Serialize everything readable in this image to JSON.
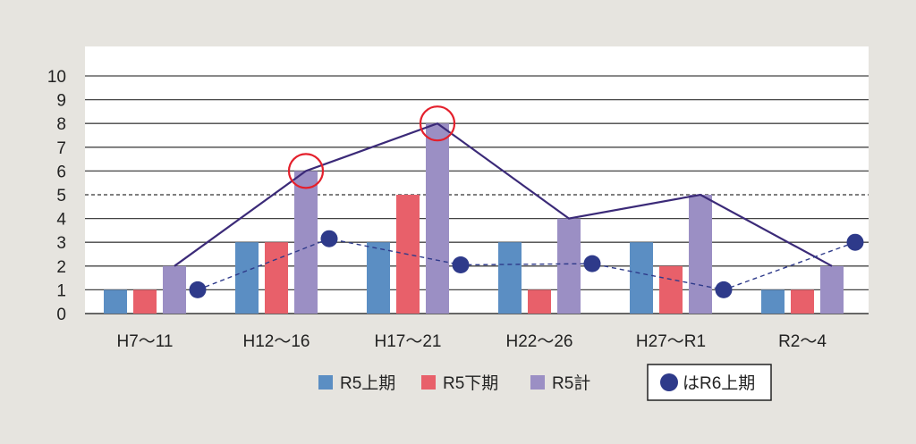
{
  "chart_data": {
    "type": "bar",
    "categories": [
      "H7～11",
      "H12～16",
      "H17～21",
      "H22～26",
      "H27～R1",
      "R2～4"
    ],
    "ylim": [
      0,
      10
    ],
    "yticks": [
      0,
      1,
      2,
      3,
      4,
      5,
      6,
      7,
      8,
      9,
      10
    ],
    "grid": true,
    "reference_line": 5,
    "series": [
      {
        "name": "R5上期",
        "kind": "bar",
        "color": "#5b8ec3",
        "values": [
          1,
          3,
          3,
          3,
          3,
          1
        ]
      },
      {
        "name": "R5下期",
        "kind": "bar",
        "color": "#e8606a",
        "values": [
          1,
          3,
          5,
          1,
          2,
          1
        ]
      },
      {
        "name": "R5計",
        "kind": "bar",
        "color": "#9b8fc4",
        "values": [
          2,
          6,
          8,
          4,
          5,
          2
        ]
      }
    ],
    "total_line": {
      "color": "#3b2a78",
      "values": [
        2,
        6,
        8,
        4,
        5,
        2
      ]
    },
    "r6_first_half": {
      "color": "#2e3a8a",
      "values": [
        1,
        3.15,
        2.05,
        2.1,
        1,
        3
      ]
    },
    "highlighted_categories": [
      "H12～16",
      "H17～21"
    ],
    "highlight_color": "#e4202c",
    "legend": {
      "placement": "bottom",
      "items": [
        "R5上期",
        "R5下期",
        "R5計"
      ],
      "dot_item_label": "はR6上期"
    }
  }
}
